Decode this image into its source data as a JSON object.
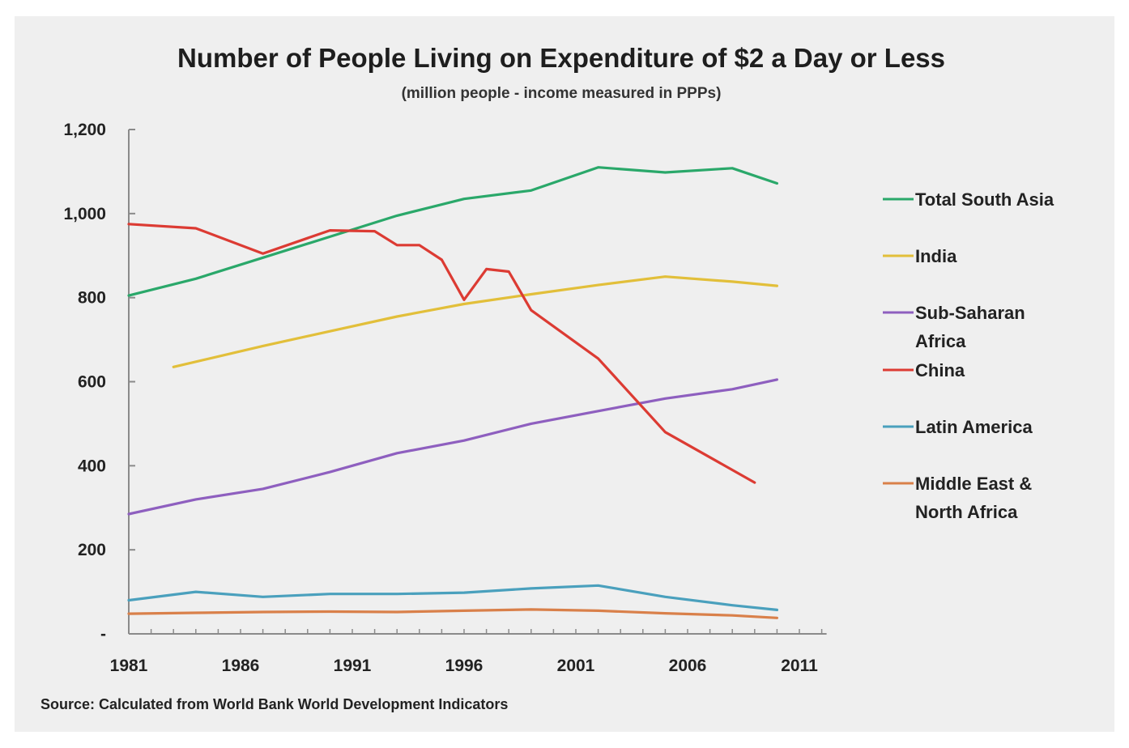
{
  "chart_data": {
    "type": "line",
    "title": "Number of People Living on Expenditure of $2 a Day or Less",
    "subtitle": "(million people - income measured in PPPs)",
    "source": "Source: Calculated from World Bank World Development Indicators",
    "xlim": [
      1981,
      2012
    ],
    "ylim": [
      0,
      1200
    ],
    "x_ticks": [
      1981,
      1986,
      1991,
      1996,
      2001,
      2006,
      2011
    ],
    "y_ticks": [
      {
        "value": 0,
        "label": "-"
      },
      {
        "value": 200,
        "label": "200"
      },
      {
        "value": 400,
        "label": "400"
      },
      {
        "value": 600,
        "label": "600"
      },
      {
        "value": 800,
        "label": "800"
      },
      {
        "value": 1000,
        "label": "1,000"
      },
      {
        "value": 1200,
        "label": "1,200"
      }
    ],
    "grid": false,
    "legend_position": "right",
    "series": [
      {
        "name": "Total South Asia",
        "legend_lines": [
          "Total South Asia"
        ],
        "color": "#2aa86a",
        "points": [
          [
            1981,
            805
          ],
          [
            1984,
            845
          ],
          [
            1987,
            895
          ],
          [
            1990,
            945
          ],
          [
            1993,
            995
          ],
          [
            1996,
            1035
          ],
          [
            1999,
            1055
          ],
          [
            2002,
            1110
          ],
          [
            2005,
            1098
          ],
          [
            2008,
            1108
          ],
          [
            2010,
            1072
          ]
        ]
      },
      {
        "name": "India",
        "legend_lines": [
          "India"
        ],
        "color": "#e2bf3a",
        "points": [
          [
            1983,
            635
          ],
          [
            1987,
            685
          ],
          [
            1990,
            720
          ],
          [
            1993,
            755
          ],
          [
            1996,
            785
          ],
          [
            1999,
            808
          ],
          [
            2002,
            830
          ],
          [
            2005,
            850
          ],
          [
            2008,
            838
          ],
          [
            2010,
            828
          ]
        ]
      },
      {
        "name": "Sub-Saharan Africa",
        "legend_lines": [
          "Sub-Saharan",
          "Africa"
        ],
        "color": "#8e5fbf",
        "points": [
          [
            1981,
            285
          ],
          [
            1984,
            320
          ],
          [
            1987,
            345
          ],
          [
            1990,
            385
          ],
          [
            1993,
            430
          ],
          [
            1996,
            460
          ],
          [
            1999,
            500
          ],
          [
            2002,
            530
          ],
          [
            2005,
            560
          ],
          [
            2008,
            582
          ],
          [
            2010,
            605
          ]
        ]
      },
      {
        "name": "China",
        "legend_lines": [
          "China"
        ],
        "color": "#dc3b33",
        "points": [
          [
            1981,
            975
          ],
          [
            1984,
            965
          ],
          [
            1987,
            905
          ],
          [
            1990,
            960
          ],
          [
            1992,
            958
          ],
          [
            1993,
            925
          ],
          [
            1994,
            925
          ],
          [
            1995,
            890
          ],
          [
            1996,
            795
          ],
          [
            1997,
            868
          ],
          [
            1998,
            862
          ],
          [
            1999,
            770
          ],
          [
            2002,
            655
          ],
          [
            2005,
            480
          ],
          [
            2009,
            360
          ]
        ]
      },
      {
        "name": "Latin America",
        "legend_lines": [
          "Latin America"
        ],
        "color": "#4aa0bd",
        "points": [
          [
            1981,
            80
          ],
          [
            1984,
            100
          ],
          [
            1987,
            88
          ],
          [
            1990,
            95
          ],
          [
            1993,
            95
          ],
          [
            1996,
            98
          ],
          [
            1999,
            108
          ],
          [
            2002,
            115
          ],
          [
            2005,
            88
          ],
          [
            2008,
            68
          ],
          [
            2010,
            57
          ]
        ]
      },
      {
        "name": "Middle East & North Africa",
        "legend_lines": [
          "Middle East &",
          "North Africa"
        ],
        "color": "#d9804a",
        "points": [
          [
            1981,
            48
          ],
          [
            1984,
            50
          ],
          [
            1987,
            52
          ],
          [
            1990,
            53
          ],
          [
            1993,
            52
          ],
          [
            1996,
            55
          ],
          [
            1999,
            58
          ],
          [
            2002,
            55
          ],
          [
            2005,
            49
          ],
          [
            2008,
            44
          ],
          [
            2010,
            38
          ]
        ]
      }
    ]
  }
}
